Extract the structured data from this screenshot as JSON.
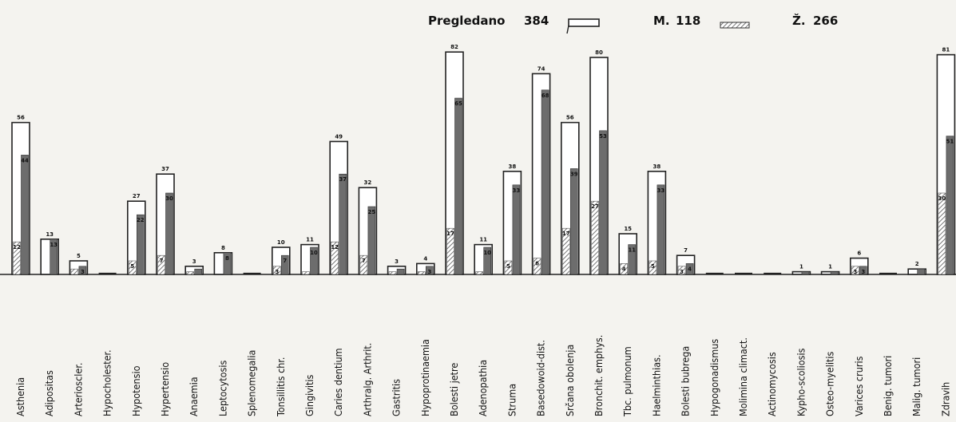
{
  "legend": {
    "total_label": "Pregledano",
    "total_value": "384",
    "male_label": "M.",
    "male_value": "118",
    "female_label": "Ž.",
    "female_value": "266"
  },
  "chart_data": {
    "type": "bar",
    "title": "",
    "xlabel": "",
    "ylabel": "",
    "ylim": [
      0,
      90
    ],
    "grid": false,
    "legend_position": "top-right",
    "series": [
      {
        "name": "Pregledano",
        "values": [
          56,
          13,
          5,
          0,
          27,
          37,
          3,
          8,
          0,
          10,
          11,
          49,
          32,
          3,
          4,
          82,
          11,
          38,
          74,
          56,
          80,
          15,
          38,
          7,
          0,
          0,
          0,
          1,
          1,
          6,
          0,
          2,
          81
        ]
      },
      {
        "name": "M.",
        "values": [
          12,
          0,
          2,
          0,
          5,
          7,
          1,
          0,
          0,
          3,
          1,
          12,
          7,
          1,
          1,
          17,
          1,
          5,
          6,
          17,
          27,
          4,
          5,
          3,
          0,
          0,
          0,
          0,
          0,
          3,
          0,
          0,
          30
        ]
      },
      {
        "name": "Ž.",
        "values": [
          44,
          13,
          3,
          0,
          22,
          30,
          2,
          8,
          0,
          7,
          10,
          37,
          25,
          2,
          3,
          65,
          10,
          33,
          68,
          39,
          53,
          11,
          33,
          4,
          0,
          0,
          0,
          1,
          1,
          3,
          0,
          2,
          51
        ]
      }
    ],
    "categories": [
      "Asthenia",
      "Adipositas",
      "Arterioscler.",
      "Hypocholester.",
      "Hypotensio",
      "Hypertensio",
      "Anaemia",
      "Leptocytosis",
      "Splenomegalia",
      "Tonsillitis chr.",
      "Gingivitis",
      "Caries dentium",
      "Arthralg. Arthrit.",
      "Gastritis",
      "Hypoprotinaemia",
      "Bolesti jetre",
      "Adenopathia",
      "Struma",
      "Basedowoid-dist.",
      "Srčana obolenja",
      "Bronchit. emphys.",
      "Tbc. pulmonum",
      "Haelminthias.",
      "Bolesti bubrega",
      "Hypogonadismus",
      "Molimina climact.",
      "Actinomycosis",
      "Kypho-scoliosis",
      "Osteo-myelitis",
      "Varices cruris",
      "Benig. tumori",
      "Malig. tumori",
      "Zdravih"
    ],
    "total_labels": [
      "56",
      "13",
      "5",
      "",
      "27",
      "37",
      "3",
      "8",
      "",
      "10",
      "11",
      "49",
      "32",
      "3",
      "4",
      "82",
      "11",
      "38",
      "74",
      "56",
      "80",
      "15",
      "38",
      "7",
      "",
      "",
      "",
      "1",
      "1",
      "6",
      "",
      "2",
      "81"
    ],
    "male_labels": [
      "12",
      "",
      "2",
      "",
      "5",
      "7",
      "1",
      "",
      "",
      "3",
      "1",
      "12",
      "7",
      "1",
      "1",
      "17",
      "1",
      "5",
      "6",
      "17",
      "27",
      "4",
      "5",
      "3",
      "",
      "",
      "",
      "",
      "",
      "3",
      "",
      "",
      "30"
    ],
    "female_labels": [
      "44",
      "13",
      "3",
      "",
      "22",
      "30",
      "2",
      "8",
      "",
      "7",
      "10",
      "37",
      "25",
      "2",
      "3",
      "65",
      "10",
      "33",
      "68",
      "39",
      "53",
      "11",
      "33",
      "4",
      "",
      "",
      "",
      "1",
      "1",
      "3",
      "",
      "2",
      "51"
    ]
  }
}
